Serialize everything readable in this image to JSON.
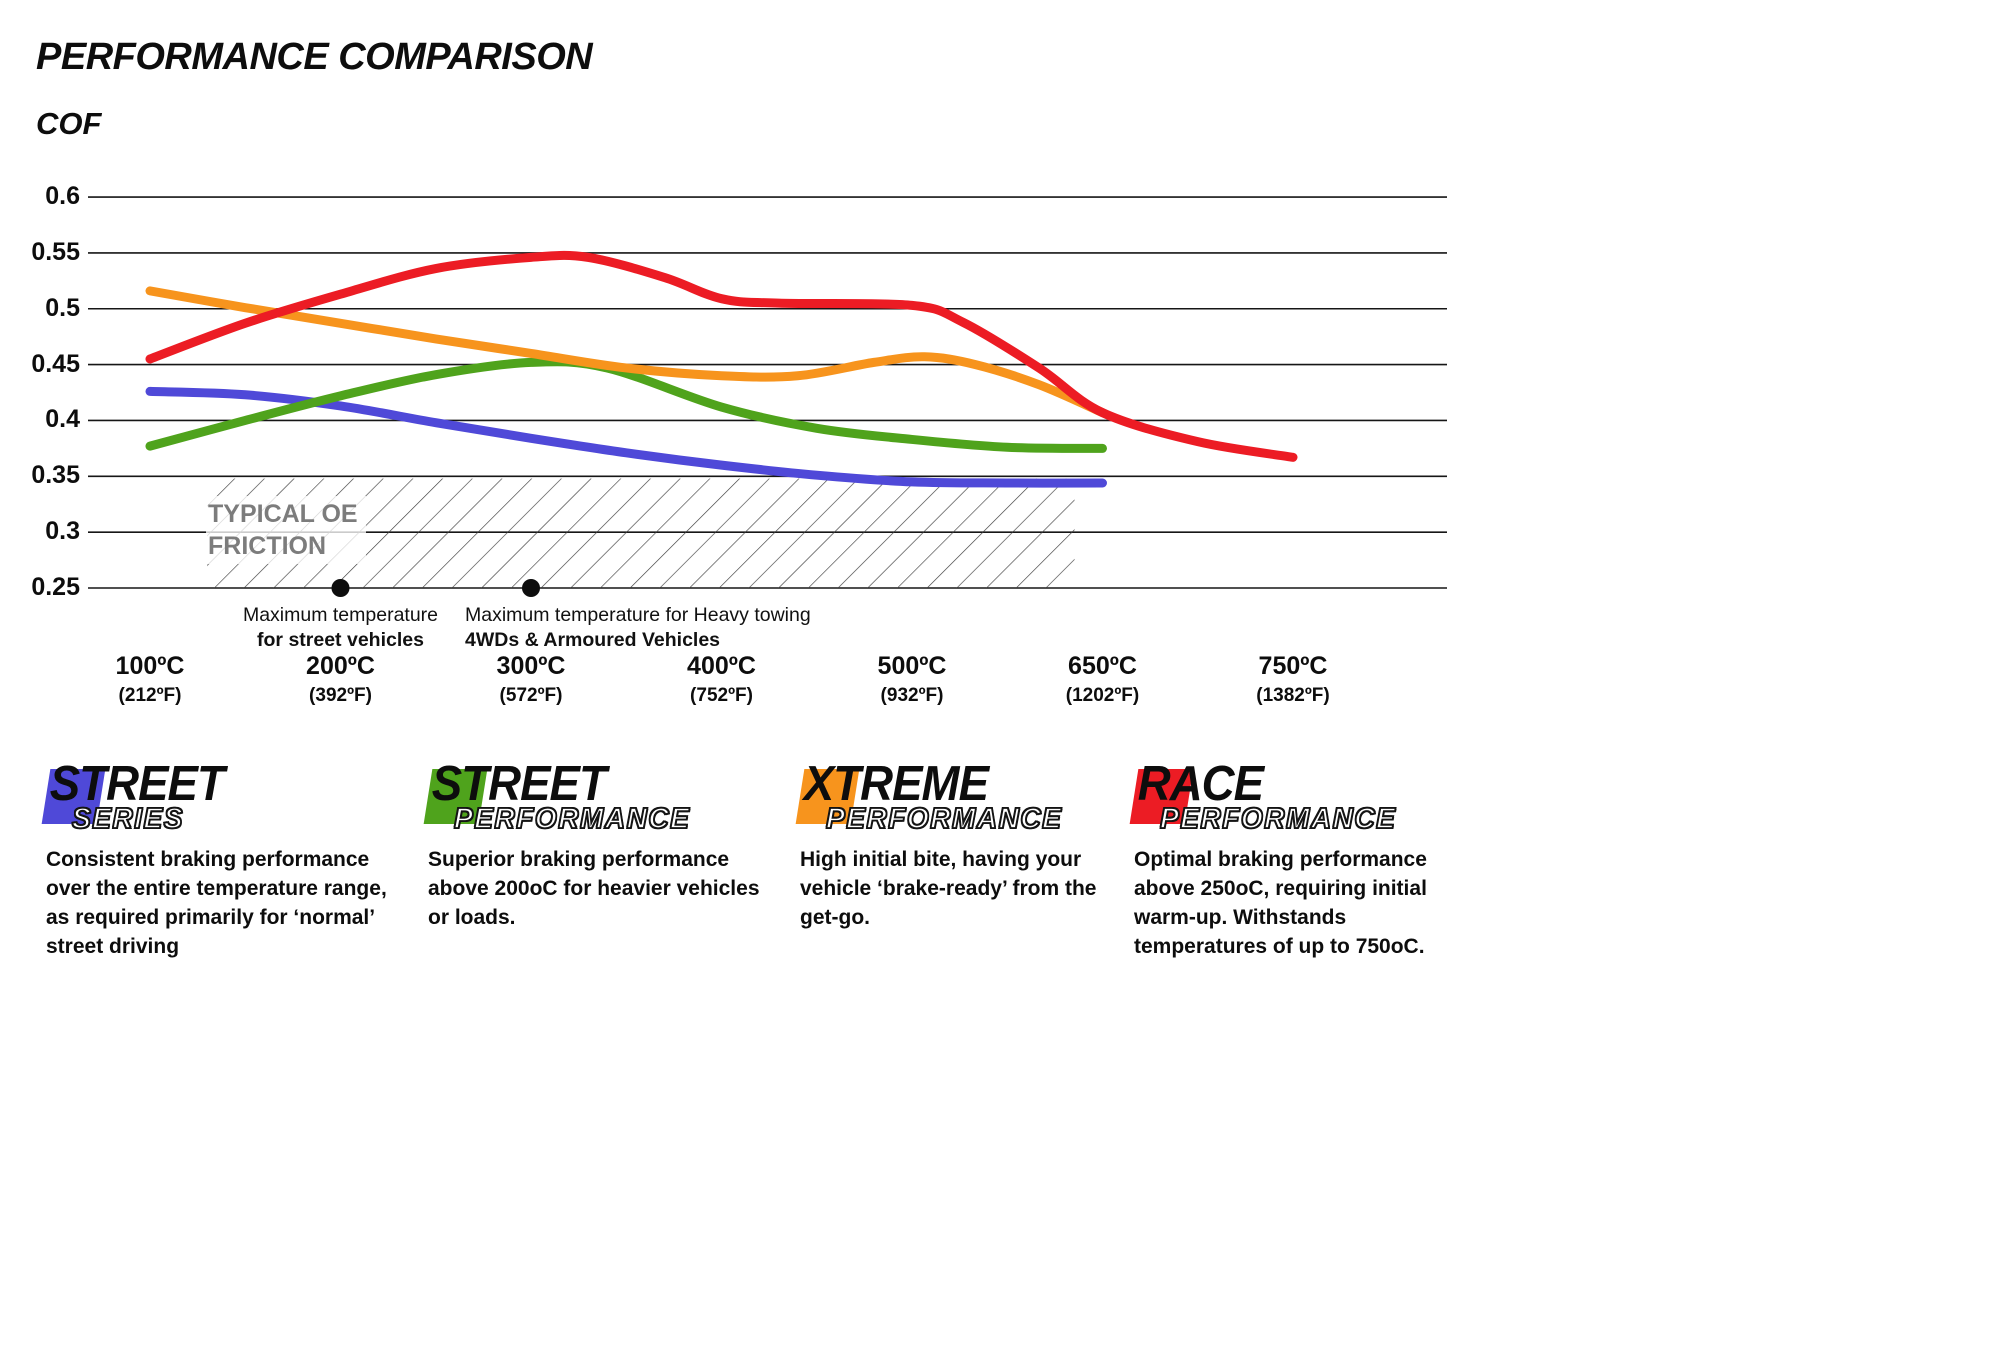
{
  "chart_data": {
    "type": "line",
    "title": "PERFORMANCE COMPARISON",
    "ylabel": "COF",
    "grid": "horizontal",
    "legend_position": "bottom",
    "ylim": [
      0.25,
      0.6
    ],
    "y_ticks": [
      0.25,
      0.3,
      0.35,
      0.4,
      0.45,
      0.5,
      0.55,
      0.6
    ],
    "x_tick_temps": [
      100,
      200,
      300,
      400,
      500,
      650,
      750
    ],
    "x_ticks": [
      {
        "c": "100ºC",
        "f": "(212ºF)"
      },
      {
        "c": "200ºC",
        "f": "(392ºF)"
      },
      {
        "c": "300ºC",
        "f": "(572ºF)"
      },
      {
        "c": "400ºC",
        "f": "(752ºF)"
      },
      {
        "c": "500ºC",
        "f": "(932ºF)"
      },
      {
        "c": "650ºC",
        "f": "(1202ºF)"
      },
      {
        "c": "750ºC",
        "f": "(1382ºF)"
      }
    ],
    "series": [
      {
        "name": "Street Series",
        "color": "#4f49d8",
        "points": [
          [
            100,
            0.426
          ],
          [
            150,
            0.423
          ],
          [
            200,
            0.413
          ],
          [
            250,
            0.398
          ],
          [
            300,
            0.384
          ],
          [
            350,
            0.371
          ],
          [
            400,
            0.36
          ],
          [
            450,
            0.351
          ],
          [
            500,
            0.345
          ],
          [
            575,
            0.344
          ],
          [
            650,
            0.344
          ]
        ]
      },
      {
        "name": "Street Performance",
        "color": "#4fa31c",
        "points": [
          [
            100,
            0.377
          ],
          [
            150,
            0.4
          ],
          [
            200,
            0.422
          ],
          [
            250,
            0.441
          ],
          [
            300,
            0.452
          ],
          [
            340,
            0.447
          ],
          [
            400,
            0.412
          ],
          [
            450,
            0.393
          ],
          [
            500,
            0.383
          ],
          [
            575,
            0.376
          ],
          [
            650,
            0.375
          ]
        ]
      },
      {
        "name": "Xtreme Performance",
        "color": "#f7941d",
        "points": [
          [
            100,
            0.516
          ],
          [
            150,
            0.501
          ],
          [
            200,
            0.487
          ],
          [
            250,
            0.473
          ],
          [
            300,
            0.46
          ],
          [
            350,
            0.447
          ],
          [
            400,
            0.44
          ],
          [
            440,
            0.44
          ],
          [
            480,
            0.452
          ],
          [
            510,
            0.457
          ],
          [
            550,
            0.45
          ],
          [
            600,
            0.432
          ],
          [
            650,
            0.407
          ]
        ]
      },
      {
        "name": "Race Performance",
        "color": "#ec1c24",
        "points": [
          [
            100,
            0.455
          ],
          [
            150,
            0.487
          ],
          [
            200,
            0.513
          ],
          [
            250,
            0.536
          ],
          [
            300,
            0.546
          ],
          [
            330,
            0.546
          ],
          [
            370,
            0.528
          ],
          [
            400,
            0.509
          ],
          [
            430,
            0.505
          ],
          [
            500,
            0.503
          ],
          [
            540,
            0.488
          ],
          [
            600,
            0.447
          ],
          [
            650,
            0.407
          ],
          [
            700,
            0.381
          ],
          [
            750,
            0.367
          ]
        ]
      }
    ],
    "oe_band": {
      "label_line1": "TYPICAL OE",
      "label_line2": "FRICTION",
      "x_from": 130,
      "x_to": 628,
      "y_from": 0.25,
      "y_to": 0.348
    },
    "markers": [
      {
        "temp": 200,
        "cof": 0.25,
        "anchor": "center",
        "line1": "Maximum temperature",
        "line2": "for street vehicles"
      },
      {
        "temp": 300,
        "cof": 0.25,
        "anchor": "left",
        "line1": "Maximum temperature for Heavy towing",
        "line2": "4WDs & Armoured Vehicles"
      }
    ]
  },
  "legend": {
    "items": [
      {
        "word1": "STREET",
        "word2": "SERIES",
        "color": "#4f49d8",
        "desc": "Consistent braking performance over the entire temperature range, as required primarily for ‘normal’ street driving"
      },
      {
        "word1": "STREET",
        "word2": "PERFORMANCE",
        "color": "#4fa31c",
        "desc": "Superior braking performance above 200oC for heavier vehicles or loads."
      },
      {
        "word1": "XTREME",
        "word2": "PERFORMANCE",
        "color": "#f7941d",
        "desc": "High initial bite, having your vehicle ‘brake-ready’ from the get-go."
      },
      {
        "word1": "RACE",
        "word2": "PERFORMANCE",
        "color": "#ec1c24",
        "desc": "Optimal braking performance above 250oC, requiring initial warm-up. Withstands temperatures of up to 750oC."
      }
    ]
  }
}
